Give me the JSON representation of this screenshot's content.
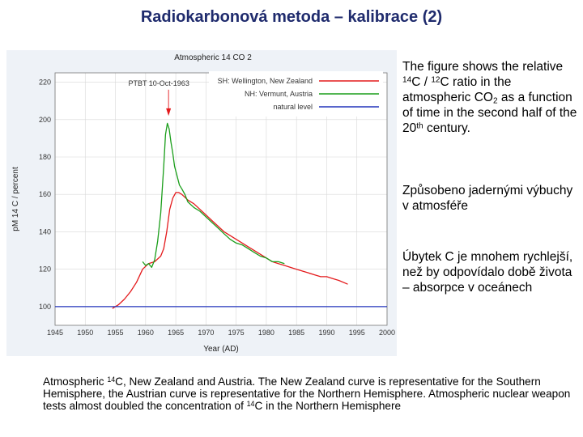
{
  "slide": {
    "title": "Radiokarbonová metoda – kalibrace (2)"
  },
  "side_text": {
    "p1": [
      "The figure shows the relative ",
      "14",
      "C / ",
      "12",
      "C ratio in the atmospheric CO",
      "2",
      " as a function of time in the second half of the ",
      "20",
      "th",
      " century."
    ],
    "p2": "Způsobeno jadernými výbuchy v atmosféře",
    "p3": "Úbytek C je mnohem rychlejší, než by odpovídalo době života – absorpce v oceánech"
  },
  "caption": [
    "Atmospheric ",
    "14",
    "C, New Zealand and Austria. The New Zealand curve is representative for the Southern Hemisphere, the Austrian curve is representative for the Northern Hemisphere. Atmospheric nuclear weapon tests almost doubled the concentration of ",
    "14",
    "C in the Northern Hemisphere"
  ],
  "chart_data": {
    "type": "line",
    "title": "Atmospheric 14 CO 2",
    "xlabel": "Year (AD)",
    "ylabel": "pM 14 C / percent",
    "xlim": [
      1945,
      2000
    ],
    "ylim": [
      90,
      225
    ],
    "x_ticks": [
      1945,
      1950,
      1955,
      1960,
      1965,
      1970,
      1975,
      1980,
      1985,
      1990,
      1995,
      2000
    ],
    "y_ticks": [
      100,
      120,
      140,
      160,
      180,
      200,
      220
    ],
    "grid": true,
    "legend_position": "top-right",
    "annotation": {
      "text": "PTBT 10-Oct-1963",
      "x": 1963.8,
      "y": 213
    },
    "series": [
      {
        "name": "SH: Wellington, New Zealand",
        "color": "#e41a1c",
        "x": [
          1954.5,
          1955.5,
          1956.5,
          1957.5,
          1958.5,
          1959.5,
          1960.5,
          1961.5,
          1962.5,
          1963.0,
          1963.5,
          1964.0,
          1964.5,
          1965.0,
          1965.5,
          1966.0,
          1967.0,
          1968.0,
          1969.0,
          1970.0,
          1971.0,
          1972.0,
          1973.0,
          1974.0,
          1975.0,
          1976.0,
          1977.0,
          1978.0,
          1979.0,
          1980.0,
          1981.0,
          1982.0,
          1983.0,
          1984.0,
          1985.0,
          1986.0,
          1987.0,
          1988.0,
          1989.0,
          1990.0,
          1991.0,
          1992.0,
          1993.5
        ],
        "y": [
          99,
          101,
          104,
          108,
          113,
          120,
          123,
          124,
          127,
          131,
          140,
          152,
          158,
          161,
          161,
          160,
          157,
          155,
          152,
          149,
          146,
          143,
          140,
          138,
          136,
          134,
          132,
          130,
          128,
          126,
          124,
          123,
          122,
          121,
          120,
          119,
          118,
          117,
          116,
          116,
          115,
          114,
          112
        ]
      },
      {
        "name": "NH: Vermunt, Austria",
        "color": "#1a9e1a",
        "x": [
          1959.5,
          1960.0,
          1960.5,
          1961.0,
          1961.5,
          1962.0,
          1962.5,
          1963.0,
          1963.3,
          1963.6,
          1963.9,
          1964.2,
          1964.5,
          1964.8,
          1965.2,
          1965.6,
          1966.0,
          1966.5,
          1967.0,
          1968.0,
          1969.0,
          1970.0,
          1971.0,
          1972.0,
          1973.0,
          1974.0,
          1975.0,
          1976.0,
          1977.0,
          1978.0,
          1979.0,
          1980.0,
          1981.0,
          1982.0,
          1983.0
        ],
        "y": [
          124,
          122,
          123,
          121,
          125,
          135,
          150,
          175,
          192,
          198,
          195,
          188,
          182,
          175,
          170,
          165,
          163,
          160,
          156,
          153,
          151,
          148,
          145,
          142,
          139,
          136,
          134,
          133,
          131,
          129,
          127,
          126,
          124,
          124,
          123
        ]
      },
      {
        "name": "natural level",
        "color": "#2233bb",
        "x": [
          1945,
          2000
        ],
        "y": [
          100,
          100
        ]
      }
    ]
  }
}
